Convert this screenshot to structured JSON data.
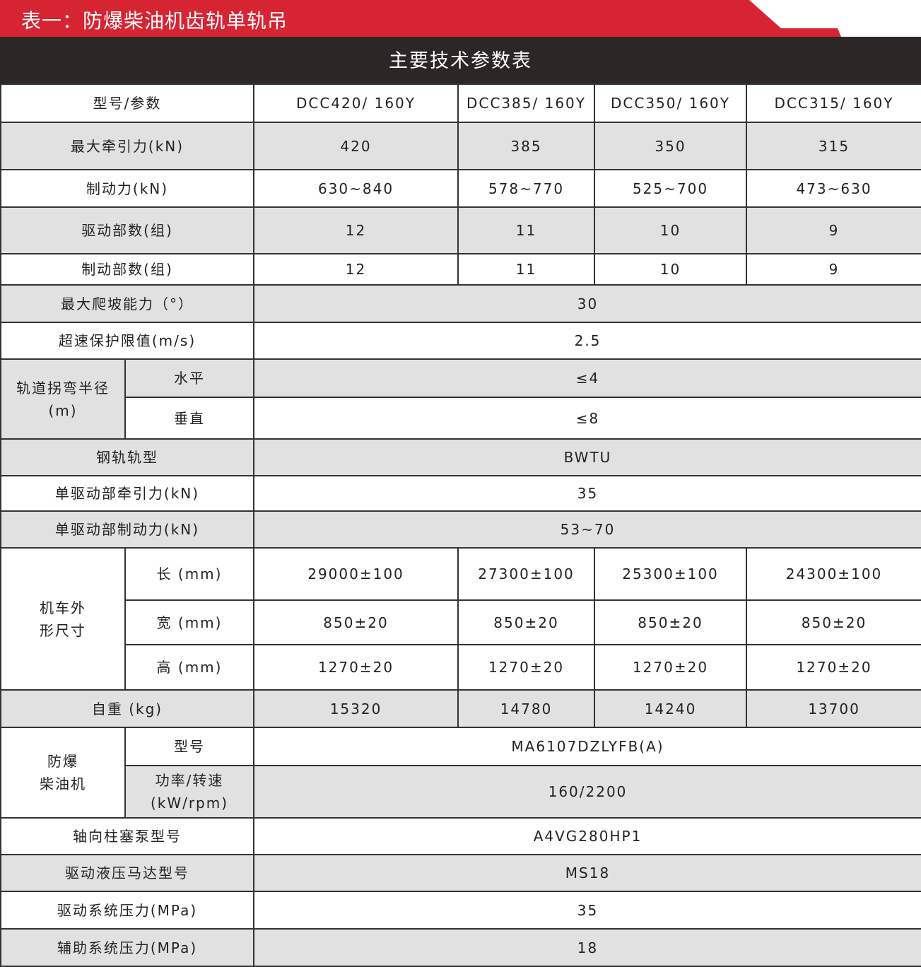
{
  "tab_title": "表一：防爆柴油机齿轨单轨吊",
  "table_title": "主要技术参数表",
  "header": {
    "label": "型号/参数",
    "models": [
      "DCC420/ 160Y",
      "DCC385/ 160Y",
      "DCC350/ 160Y",
      "DCC315/ 160Y"
    ]
  },
  "rows": [
    {
      "label": "最大牵引力(kN)",
      "values": [
        "420",
        "385",
        "350",
        "315"
      ]
    },
    {
      "label": "制动力(kN)",
      "values": [
        "630~840",
        "578~770",
        "525~700",
        "473~630"
      ]
    },
    {
      "label": "驱动部数(组)",
      "values": [
        "12",
        "11",
        "10",
        "9"
      ]
    },
    {
      "label": "制动部数(组)",
      "values": [
        "12",
        "11",
        "10",
        "9"
      ]
    },
    {
      "label": "最大爬坡能力（°）",
      "values": [
        "30"
      ]
    },
    {
      "label": "超速保护限值(m/s)",
      "values": [
        "2.5"
      ]
    },
    {
      "group": "轨道拐弯半径\n(m)",
      "sub": "水平",
      "values": [
        "≤4"
      ]
    },
    {
      "group": "轨道拐弯半径\n(m)",
      "sub": "垂直",
      "values": [
        "≤8"
      ]
    },
    {
      "label": "钢轨轨型",
      "values": [
        "BWTU"
      ]
    },
    {
      "label": "单驱动部牵引力(kN)",
      "values": [
        "35"
      ]
    },
    {
      "label": "单驱动部制动力(kN)",
      "values": [
        "53~70"
      ]
    },
    {
      "group": "机车外\n形尺寸",
      "sub": "长 (mm)",
      "values": [
        "29000±100",
        "27300±100",
        "25300±100",
        "24300±100"
      ]
    },
    {
      "group": "机车外\n形尺寸",
      "sub": "宽 (mm)",
      "values": [
        "850±20",
        "850±20",
        "850±20",
        "850±20"
      ]
    },
    {
      "group": "机车外\n形尺寸",
      "sub": "高 (mm)",
      "values": [
        "1270±20",
        "1270±20",
        "1270±20",
        "1270±20"
      ]
    },
    {
      "label": "自重 (kg)",
      "values": [
        "15320",
        "14780",
        "14240",
        "13700"
      ]
    },
    {
      "group": "防爆\n柴油机",
      "sub": "型号",
      "values": [
        "MA6107DZLYFB(A)"
      ]
    },
    {
      "group": "防爆\n柴油机",
      "sub": "功率/转速\n(kW/rpm)",
      "values": [
        "160/2200"
      ]
    },
    {
      "label": "轴向柱塞泵型号",
      "values": [
        "A4VG280HP1"
      ]
    },
    {
      "label": "驱动液压马达型号",
      "values": [
        "MS18"
      ]
    },
    {
      "label": "驱动系统压力(MPa)",
      "values": [
        "35"
      ]
    },
    {
      "label": "辅助系统压力(MPa)",
      "values": [
        "18"
      ]
    }
  ]
}
